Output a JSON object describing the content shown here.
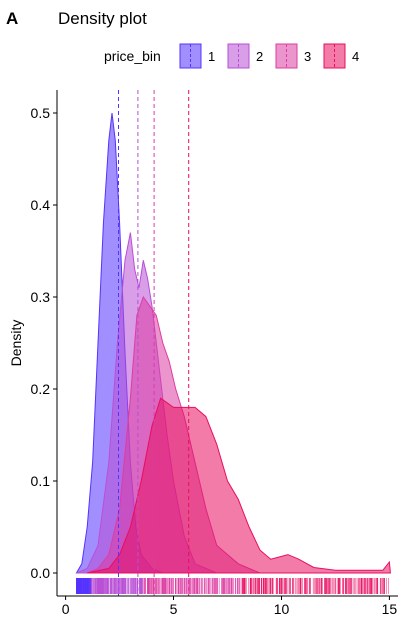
{
  "panel_tag": "A",
  "chart_data": {
    "type": "area",
    "title": "Density plot",
    "xlabel": "",
    "ylabel": "Density",
    "xlim": [
      -0.4,
      15.4
    ],
    "ylim": [
      -0.025,
      0.525
    ],
    "x_ticks": [
      0,
      5,
      10,
      15
    ],
    "y_ticks": [
      0.0,
      0.1,
      0.2,
      0.3,
      0.4,
      0.5
    ],
    "grid": false,
    "legend_title": "price_bin",
    "legend_position": "top",
    "series": [
      {
        "name": "1",
        "color": "#5533ff",
        "mean": 2.45,
        "points": [
          [
            0.5,
            0.0
          ],
          [
            0.75,
            0.01
          ],
          [
            1.0,
            0.05
          ],
          [
            1.25,
            0.12
          ],
          [
            1.5,
            0.25
          ],
          [
            1.75,
            0.38
          ],
          [
            2.0,
            0.47
          ],
          [
            2.15,
            0.5
          ],
          [
            2.3,
            0.47
          ],
          [
            2.5,
            0.38
          ],
          [
            2.75,
            0.24
          ],
          [
            3.0,
            0.12
          ],
          [
            3.25,
            0.05
          ],
          [
            3.5,
            0.02
          ],
          [
            4.0,
            0.005
          ],
          [
            4.5,
            0.0
          ]
        ]
      },
      {
        "name": "2",
        "color": "#b84fd6",
        "mean": 3.35,
        "points": [
          [
            0.5,
            0.0
          ],
          [
            1.0,
            0.005
          ],
          [
            1.5,
            0.03
          ],
          [
            2.0,
            0.12
          ],
          [
            2.4,
            0.25
          ],
          [
            2.75,
            0.34
          ],
          [
            3.0,
            0.37
          ],
          [
            3.2,
            0.33
          ],
          [
            3.4,
            0.31
          ],
          [
            3.6,
            0.34
          ],
          [
            3.8,
            0.32
          ],
          [
            4.0,
            0.29
          ],
          [
            4.2,
            0.25
          ],
          [
            4.4,
            0.21
          ],
          [
            4.7,
            0.15
          ],
          [
            5.0,
            0.1
          ],
          [
            5.5,
            0.04
          ],
          [
            6.0,
            0.01
          ],
          [
            7.0,
            0.0
          ]
        ]
      },
      {
        "name": "3",
        "color": "#dc3da3",
        "mean": 4.1,
        "points": [
          [
            1.0,
            0.0
          ],
          [
            1.5,
            0.005
          ],
          [
            2.0,
            0.02
          ],
          [
            2.5,
            0.07
          ],
          [
            3.0,
            0.19
          ],
          [
            3.3,
            0.28
          ],
          [
            3.6,
            0.3
          ],
          [
            3.9,
            0.29
          ],
          [
            4.2,
            0.28
          ],
          [
            4.5,
            0.25
          ],
          [
            4.8,
            0.23
          ],
          [
            5.1,
            0.2
          ],
          [
            5.5,
            0.17
          ],
          [
            6.0,
            0.12
          ],
          [
            6.5,
            0.07
          ],
          [
            7.0,
            0.03
          ],
          [
            8.0,
            0.01
          ],
          [
            9.0,
            0.0
          ]
        ]
      },
      {
        "name": "4",
        "color": "#e80e61",
        "mean": 5.7,
        "points": [
          [
            1.0,
            0.0
          ],
          [
            2.0,
            0.005
          ],
          [
            2.5,
            0.02
          ],
          [
            3.0,
            0.05
          ],
          [
            3.5,
            0.1
          ],
          [
            4.0,
            0.16
          ],
          [
            4.4,
            0.19
          ],
          [
            5.0,
            0.18
          ],
          [
            5.5,
            0.18
          ],
          [
            6.0,
            0.18
          ],
          [
            6.5,
            0.17
          ],
          [
            7.0,
            0.14
          ],
          [
            7.5,
            0.1
          ],
          [
            8.0,
            0.08
          ],
          [
            8.5,
            0.05
          ],
          [
            9.0,
            0.025
          ],
          [
            9.5,
            0.015
          ],
          [
            10.0,
            0.018
          ],
          [
            10.3,
            0.02
          ],
          [
            10.8,
            0.015
          ],
          [
            11.5,
            0.006
          ],
          [
            12.5,
            0.003
          ],
          [
            14.0,
            0.003
          ],
          [
            14.7,
            0.003
          ],
          [
            15.0,
            0.012
          ],
          [
            15.05,
            0.0
          ]
        ]
      }
    ],
    "rug": {
      "x_range": [
        0.5,
        15.0
      ],
      "colors": [
        "#5533ff",
        "#b84fd6",
        "#dc3da3",
        "#e80e61"
      ]
    }
  }
}
